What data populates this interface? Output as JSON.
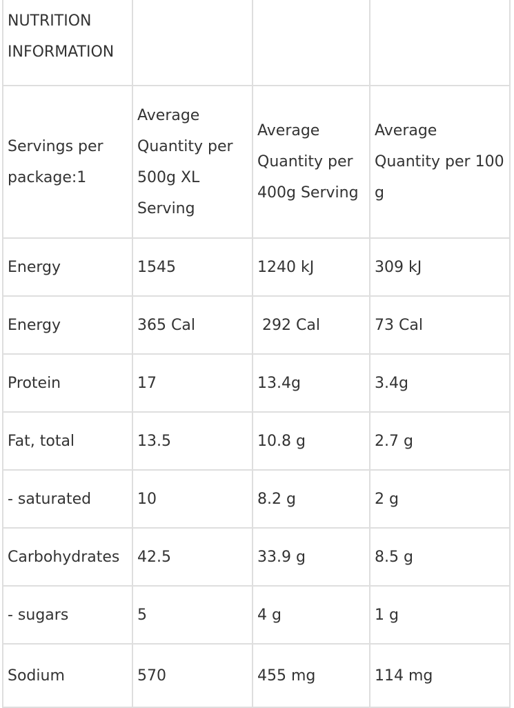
{
  "table": {
    "title": "NUTRITION INFORMATION",
    "header": [
      "Servings per package:1",
      "Average Quantity per 500g XL Serving",
      "Average Quantity per 400g Serving",
      "Average Quantity per 100 g"
    ],
    "rows": [
      [
        "Energy",
        "1545",
        "1240 kJ",
        "309 kJ"
      ],
      [
        "Energy",
        "365 Cal",
        " 292 Cal",
        "73 Cal"
      ],
      [
        "Protein",
        "17",
        "13.4g",
        "3.4g"
      ],
      [
        "Fat, total",
        "13.5",
        "10.8 g",
        "2.7 g"
      ],
      [
        "- saturated",
        "10",
        "8.2 g",
        "2 g"
      ],
      [
        "Carbohydrates",
        "42.5",
        "33.9 g",
        "8.5 g"
      ],
      [
        "- sugars",
        "5",
        "4 g",
        "1 g"
      ],
      [
        "Sodium",
        "570",
        "455 mg",
        "114 mg"
      ]
    ]
  }
}
